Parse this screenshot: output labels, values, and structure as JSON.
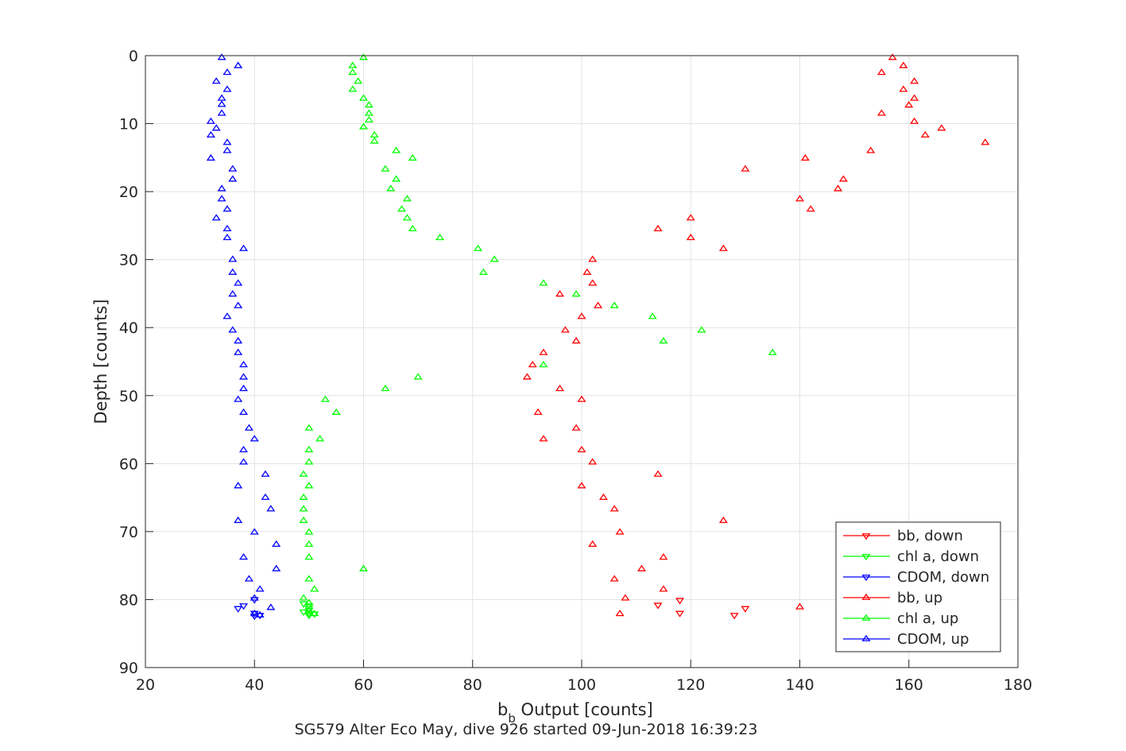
{
  "chart_data": {
    "type": "scatter",
    "xlabel_main": "b",
    "xlabel_sub": "b",
    "xlabel_rest": " Output [counts]",
    "ylabel": "Depth [counts]",
    "subtitle": "SG579 Alter Eco May, dive 926 started 09-Jun-2018 16:39:23",
    "xlim": [
      20,
      180
    ],
    "ylim": [
      0,
      90
    ],
    "y_reversed": true,
    "xticks": [
      20,
      40,
      60,
      80,
      100,
      120,
      140,
      160,
      180
    ],
    "yticks": [
      0,
      10,
      20,
      30,
      40,
      50,
      60,
      70,
      80,
      90
    ],
    "grid": true,
    "legend_position": "bottom-right",
    "series": [
      {
        "name": "bb, down",
        "color": "#ff0000",
        "marker": "triangle-down",
        "points": [
          [
            114,
            80.8
          ],
          [
            118,
            80.1
          ],
          [
            118,
            82.0
          ],
          [
            128,
            82.3
          ],
          [
            130,
            81.3
          ]
        ]
      },
      {
        "name": "chl a, down",
        "color": "#00ff00",
        "marker": "triangle-down",
        "points": [
          [
            49,
            80.6
          ],
          [
            50,
            80.9
          ],
          [
            50,
            81.3
          ],
          [
            50,
            81.6
          ],
          [
            50,
            82.0
          ],
          [
            50,
            82.3
          ],
          [
            51,
            82.1
          ],
          [
            49,
            81.8
          ]
        ]
      },
      {
        "name": "CDOM, down",
        "color": "#0000ff",
        "marker": "triangle-down",
        "points": [
          [
            37,
            81.3
          ],
          [
            38,
            80.9
          ],
          [
            40,
            80.0
          ],
          [
            40,
            82.0
          ],
          [
            41,
            82.3
          ],
          [
            40,
            82.4
          ]
        ]
      },
      {
        "name": "bb, up",
        "color": "#ff0000",
        "marker": "triangle-up",
        "points": [
          [
            157,
            0.3
          ],
          [
            159,
            1.5
          ],
          [
            155,
            2.5
          ],
          [
            161,
            3.8
          ],
          [
            159,
            5.0
          ],
          [
            161,
            6.3
          ],
          [
            160,
            7.3
          ],
          [
            155,
            8.5
          ],
          [
            161,
            9.7
          ],
          [
            166,
            10.7
          ],
          [
            163,
            11.7
          ],
          [
            174,
            12.8
          ],
          [
            153,
            14.0
          ],
          [
            141,
            15.1
          ],
          [
            130,
            16.7
          ],
          [
            148,
            18.2
          ],
          [
            147,
            19.6
          ],
          [
            140,
            21.1
          ],
          [
            142,
            22.6
          ],
          [
            120,
            23.9
          ],
          [
            114,
            25.5
          ],
          [
            120,
            26.8
          ],
          [
            126,
            28.4
          ],
          [
            102,
            30.0
          ],
          [
            101,
            31.9
          ],
          [
            102,
            33.5
          ],
          [
            96,
            35.1
          ],
          [
            103,
            36.8
          ],
          [
            100,
            38.4
          ],
          [
            97,
            40.4
          ],
          [
            99,
            42.0
          ],
          [
            93,
            43.7
          ],
          [
            91,
            45.5
          ],
          [
            90,
            47.3
          ],
          [
            96,
            49.0
          ],
          [
            100,
            50.6
          ],
          [
            92,
            52.5
          ],
          [
            99,
            54.8
          ],
          [
            93,
            56.4
          ],
          [
            100,
            58.0
          ],
          [
            102,
            59.8
          ],
          [
            114,
            61.6
          ],
          [
            100,
            63.3
          ],
          [
            104,
            65.0
          ],
          [
            106,
            66.7
          ],
          [
            126,
            68.4
          ],
          [
            107,
            70.1
          ],
          [
            102,
            71.9
          ],
          [
            115,
            73.8
          ],
          [
            111,
            75.5
          ],
          [
            106,
            77.0
          ],
          [
            115,
            78.5
          ],
          [
            108,
            79.8
          ],
          [
            140,
            81.1
          ],
          [
            107,
            82.1
          ]
        ]
      },
      {
        "name": "chl a, up",
        "color": "#00ff00",
        "marker": "triangle-up",
        "points": [
          [
            60,
            0.3
          ],
          [
            58,
            1.5
          ],
          [
            58,
            2.5
          ],
          [
            59,
            3.8
          ],
          [
            58,
            5.0
          ],
          [
            60,
            6.3
          ],
          [
            61,
            7.3
          ],
          [
            61,
            8.5
          ],
          [
            61,
            9.5
          ],
          [
            60,
            10.5
          ],
          [
            62,
            11.7
          ],
          [
            62,
            12.6
          ],
          [
            66,
            14.0
          ],
          [
            69,
            15.1
          ],
          [
            64,
            16.7
          ],
          [
            66,
            18.2
          ],
          [
            65,
            19.6
          ],
          [
            68,
            21.1
          ],
          [
            67,
            22.6
          ],
          [
            68,
            23.9
          ],
          [
            69,
            25.5
          ],
          [
            74,
            26.8
          ],
          [
            81,
            28.4
          ],
          [
            84,
            30.0
          ],
          [
            82,
            31.9
          ],
          [
            93,
            33.5
          ],
          [
            99,
            35.1
          ],
          [
            106,
            36.8
          ],
          [
            113,
            38.4
          ],
          [
            122,
            40.4
          ],
          [
            115,
            42.0
          ],
          [
            135,
            43.7
          ],
          [
            93,
            45.5
          ],
          [
            70,
            47.3
          ],
          [
            64,
            49.0
          ],
          [
            53,
            50.6
          ],
          [
            55,
            52.5
          ],
          [
            50,
            54.8
          ],
          [
            52,
            56.4
          ],
          [
            50,
            58.0
          ],
          [
            50,
            59.8
          ],
          [
            49,
            61.6
          ],
          [
            50,
            63.3
          ],
          [
            49,
            65.0
          ],
          [
            49,
            66.7
          ],
          [
            49,
            68.4
          ],
          [
            50,
            70.1
          ],
          [
            50,
            71.9
          ],
          [
            50,
            73.8
          ],
          [
            60,
            75.5
          ],
          [
            50,
            77.0
          ],
          [
            51,
            78.5
          ],
          [
            49,
            79.8
          ],
          [
            50,
            80.5
          ],
          [
            51,
            82.1
          ]
        ]
      },
      {
        "name": "CDOM, up",
        "color": "#0000ff",
        "marker": "triangle-up",
        "points": [
          [
            34,
            0.3
          ],
          [
            37,
            1.5
          ],
          [
            35,
            2.5
          ],
          [
            33,
            3.8
          ],
          [
            35,
            5.0
          ],
          [
            34,
            6.3
          ],
          [
            34,
            7.2
          ],
          [
            34,
            8.5
          ],
          [
            32,
            9.7
          ],
          [
            33,
            10.7
          ],
          [
            32,
            11.7
          ],
          [
            35,
            12.8
          ],
          [
            35,
            14.0
          ],
          [
            32,
            15.1
          ],
          [
            36,
            16.7
          ],
          [
            36,
            18.2
          ],
          [
            34,
            19.6
          ],
          [
            34,
            21.1
          ],
          [
            35,
            22.6
          ],
          [
            33,
            23.9
          ],
          [
            35,
            25.5
          ],
          [
            35,
            26.8
          ],
          [
            38,
            28.4
          ],
          [
            36,
            30.0
          ],
          [
            36,
            31.9
          ],
          [
            37,
            33.5
          ],
          [
            36,
            35.1
          ],
          [
            37,
            36.8
          ],
          [
            35,
            38.4
          ],
          [
            36,
            40.4
          ],
          [
            37,
            42.0
          ],
          [
            37,
            43.7
          ],
          [
            38,
            45.5
          ],
          [
            38,
            47.3
          ],
          [
            38,
            49.0
          ],
          [
            37,
            50.6
          ],
          [
            38,
            52.5
          ],
          [
            39,
            54.8
          ],
          [
            40,
            56.4
          ],
          [
            38,
            58.0
          ],
          [
            38,
            59.8
          ],
          [
            42,
            61.6
          ],
          [
            37,
            63.3
          ],
          [
            42,
            65.0
          ],
          [
            43,
            66.7
          ],
          [
            37,
            68.4
          ],
          [
            40,
            70.1
          ],
          [
            44,
            71.9
          ],
          [
            38,
            73.8
          ],
          [
            44,
            75.5
          ],
          [
            39,
            77.0
          ],
          [
            41,
            78.5
          ],
          [
            40,
            79.8
          ],
          [
            43,
            81.2
          ],
          [
            40,
            82.1
          ],
          [
            41,
            82.3
          ]
        ]
      }
    ]
  }
}
